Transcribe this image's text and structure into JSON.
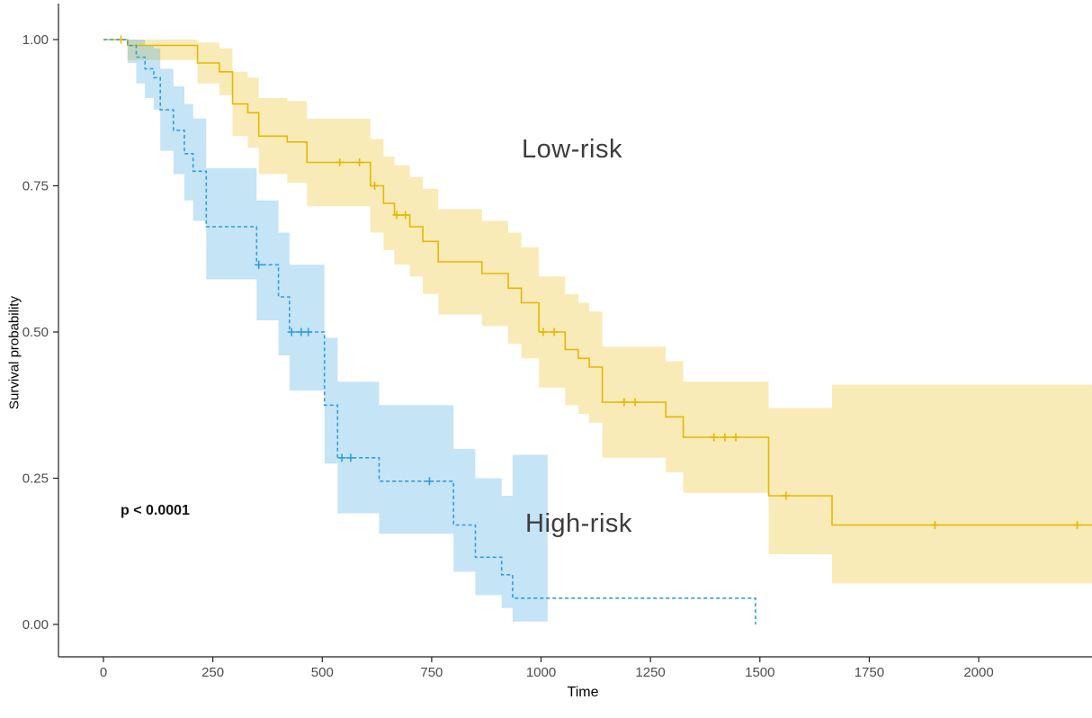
{
  "chart_data": {
    "type": "line",
    "subtype": "kaplan-meier-step-with-confidence-bands",
    "title": "",
    "xlabel": "Time",
    "ylabel": "Survival probability",
    "xlim": [
      0,
      2260
    ],
    "ylim": [
      0,
      1
    ],
    "grid": false,
    "legend_position": "none",
    "x_ticks": [
      0,
      250,
      500,
      750,
      1000,
      1250,
      1500,
      1750,
      2000
    ],
    "y_ticks": [
      0,
      0.25,
      0.5,
      0.75,
      1
    ],
    "y_tick_labels": [
      "0.00",
      "0.25",
      "0.50",
      "0.75",
      "1.00"
    ],
    "colors": {
      "low_risk": "#E7B800",
      "high_risk": "#2E9FDF",
      "tick_text": "#4d4d4d",
      "axis_line": "#222222"
    },
    "annotations": [
      {
        "text": "Low-risk",
        "x": 955,
        "y": 0.8
      },
      {
        "text": "High-risk",
        "x": 965,
        "y": 0.15
      },
      {
        "text": "p < 0.0001",
        "x": 40,
        "y": 0.185
      }
    ],
    "series": [
      {
        "name": "Low-risk",
        "color": "#E7B800",
        "line_style": "solid",
        "steps": [
          [
            0,
            1.0
          ],
          [
            55,
            0.99
          ],
          [
            215,
            0.96
          ],
          [
            265,
            0.945
          ],
          [
            295,
            0.89
          ],
          [
            330,
            0.875
          ],
          [
            355,
            0.835
          ],
          [
            420,
            0.825
          ],
          [
            465,
            0.79
          ],
          [
            610,
            0.75
          ],
          [
            640,
            0.72
          ],
          [
            665,
            0.7
          ],
          [
            700,
            0.68
          ],
          [
            730,
            0.655
          ],
          [
            765,
            0.62
          ],
          [
            865,
            0.6
          ],
          [
            925,
            0.575
          ],
          [
            955,
            0.55
          ],
          [
            995,
            0.5
          ],
          [
            1055,
            0.47
          ],
          [
            1085,
            0.455
          ],
          [
            1110,
            0.44
          ],
          [
            1140,
            0.38
          ],
          [
            1285,
            0.355
          ],
          [
            1325,
            0.32
          ],
          [
            1520,
            0.22
          ],
          [
            1665,
            0.17
          ],
          [
            2260,
            0.17
          ]
        ],
        "censor_marks": [
          [
            40,
            1.0
          ],
          [
            540,
            0.79
          ],
          [
            585,
            0.79
          ],
          [
            620,
            0.75
          ],
          [
            670,
            0.7
          ],
          [
            690,
            0.7
          ],
          [
            1005,
            0.5
          ],
          [
            1030,
            0.5
          ],
          [
            1190,
            0.38
          ],
          [
            1215,
            0.38
          ],
          [
            1395,
            0.32
          ],
          [
            1420,
            0.32
          ],
          [
            1445,
            0.32
          ],
          [
            1560,
            0.22
          ],
          [
            1900,
            0.17
          ],
          [
            2225,
            0.17
          ]
        ],
        "ci": [
          [
            0,
            1.0,
            1.0
          ],
          [
            55,
            0.965,
            1.0
          ],
          [
            215,
            0.925,
            0.995
          ],
          [
            265,
            0.905,
            0.985
          ],
          [
            295,
            0.835,
            0.945
          ],
          [
            330,
            0.815,
            0.935
          ],
          [
            355,
            0.77,
            0.9
          ],
          [
            420,
            0.755,
            0.895
          ],
          [
            465,
            0.715,
            0.865
          ],
          [
            610,
            0.67,
            0.83
          ],
          [
            640,
            0.64,
            0.8
          ],
          [
            665,
            0.615,
            0.785
          ],
          [
            700,
            0.595,
            0.765
          ],
          [
            730,
            0.565,
            0.745
          ],
          [
            765,
            0.53,
            0.71
          ],
          [
            865,
            0.51,
            0.69
          ],
          [
            925,
            0.48,
            0.67
          ],
          [
            955,
            0.455,
            0.645
          ],
          [
            995,
            0.405,
            0.595
          ],
          [
            1055,
            0.375,
            0.565
          ],
          [
            1085,
            0.36,
            0.55
          ],
          [
            1110,
            0.345,
            0.535
          ],
          [
            1140,
            0.285,
            0.475
          ],
          [
            1285,
            0.26,
            0.45
          ],
          [
            1325,
            0.225,
            0.415
          ],
          [
            1520,
            0.12,
            0.37
          ],
          [
            1665,
            0.07,
            0.41
          ],
          [
            2260,
            0.07,
            0.41
          ]
        ],
        "ci_opacity": 0.28
      },
      {
        "name": "High-risk",
        "color": "#2E9FDF",
        "line_style": "dashed",
        "steps": [
          [
            0,
            1.0
          ],
          [
            55,
            0.99
          ],
          [
            75,
            0.97
          ],
          [
            95,
            0.95
          ],
          [
            115,
            0.935
          ],
          [
            130,
            0.88
          ],
          [
            160,
            0.845
          ],
          [
            185,
            0.805
          ],
          [
            205,
            0.775
          ],
          [
            235,
            0.68
          ],
          [
            350,
            0.615
          ],
          [
            400,
            0.56
          ],
          [
            425,
            0.5
          ],
          [
            505,
            0.375
          ],
          [
            535,
            0.285
          ],
          [
            630,
            0.245
          ],
          [
            800,
            0.17
          ],
          [
            850,
            0.115
          ],
          [
            910,
            0.085
          ],
          [
            935,
            0.045
          ],
          [
            1490,
            0.0
          ]
        ],
        "censor_marks": [
          [
            355,
            0.615
          ],
          [
            430,
            0.5
          ],
          [
            452,
            0.5
          ],
          [
            468,
            0.5
          ],
          [
            545,
            0.285
          ],
          [
            565,
            0.285
          ],
          [
            745,
            0.245
          ]
        ],
        "ci": [
          [
            0,
            1.0,
            1.0
          ],
          [
            55,
            0.96,
            1.0
          ],
          [
            75,
            0.925,
            1.0
          ],
          [
            95,
            0.9,
            0.99
          ],
          [
            115,
            0.88,
            0.985
          ],
          [
            130,
            0.81,
            0.95
          ],
          [
            160,
            0.77,
            0.92
          ],
          [
            185,
            0.725,
            0.89
          ],
          [
            205,
            0.69,
            0.865
          ],
          [
            235,
            0.59,
            0.78
          ],
          [
            350,
            0.52,
            0.725
          ],
          [
            400,
            0.46,
            0.67
          ],
          [
            425,
            0.4,
            0.615
          ],
          [
            505,
            0.275,
            0.49
          ],
          [
            535,
            0.19,
            0.415
          ],
          [
            630,
            0.155,
            0.375
          ],
          [
            800,
            0.09,
            0.3
          ],
          [
            850,
            0.05,
            0.25
          ],
          [
            910,
            0.028,
            0.22
          ],
          [
            935,
            0.005,
            0.29
          ],
          [
            1015,
            0.005,
            0.29
          ]
        ],
        "ci_opacity": 0.28
      }
    ]
  }
}
